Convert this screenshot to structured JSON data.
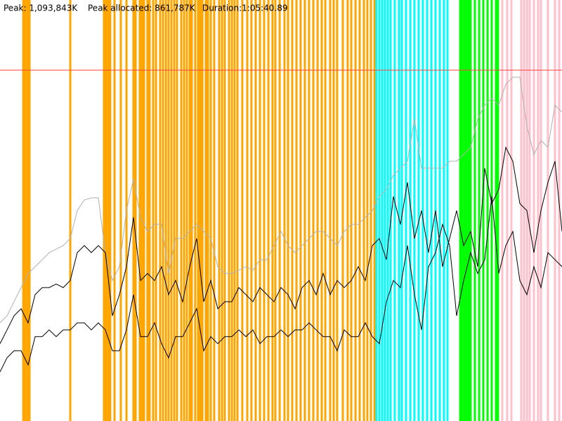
{
  "chart_data": {
    "type": "line",
    "stats": [
      "Peak: 1,093,843K",
      "Peak allocated: 861,787K",
      "Duration:1:05:40.89"
    ],
    "xlim": [
      0,
      3940.89
    ],
    "ylim": [
      0,
      1312612
    ],
    "peak_value": 1093843,
    "peak_color": "#ff4040",
    "x": [
      0,
      49.3,
      98.5,
      147.8,
      197.0,
      246.3,
      295.6,
      344.8,
      394.1,
      443.3,
      492.6,
      541.9,
      591.1,
      640.4,
      689.7,
      738.9,
      788.2,
      837.4,
      886.7,
      936.0,
      985.2,
      1034.5,
      1083.7,
      1133.0,
      1182.3,
      1231.5,
      1280.8,
      1330.1,
      1379.3,
      1428.6,
      1477.8,
      1527.1,
      1576.4,
      1625.6,
      1674.9,
      1724.1,
      1773.4,
      1822.7,
      1871.9,
      1921.2,
      1970.4,
      2019.7,
      2069.0,
      2118.2,
      2167.5,
      2216.8,
      2266.0,
      2315.3,
      2364.5,
      2413.8,
      2463.1,
      2512.3,
      2561.6,
      2610.8,
      2660.1,
      2709.4,
      2758.6,
      2807.9,
      2857.1,
      2906.4,
      2955.7,
      3004.9,
      3054.2,
      3103.5,
      3152.7,
      3202.0,
      3251.2,
      3300.5,
      3349.8,
      3399.0,
      3448.3,
      3497.5,
      3546.8,
      3596.1,
      3645.3,
      3694.6,
      3743.8,
      3793.1,
      3842.4,
      3891.6,
      3940.89
    ],
    "series": [
      {
        "color": "#b0b0b0",
        "values": [
          306000,
          328000,
          372000,
          416000,
          460000,
          481000,
          503000,
          525000,
          536000,
          547000,
          569000,
          656000,
          689000,
          696000,
          696000,
          525000,
          438000,
          481000,
          656000,
          755000,
          635000,
          591000,
          613000,
          613000,
          460000,
          569000,
          569000,
          591000,
          613000,
          591000,
          569000,
          481000,
          460000,
          460000,
          470000,
          481000,
          470000,
          503000,
          503000,
          547000,
          591000,
          547000,
          525000,
          547000,
          569000,
          591000,
          591000,
          569000,
          547000,
          591000,
          613000,
          613000,
          635000,
          656000,
          700000,
          722000,
          766000,
          788000,
          810000,
          941000,
          788000,
          788000,
          788000,
          788000,
          810000,
          810000,
          831000,
          853000,
          941000,
          985000,
          1006000,
          985000,
          1050000,
          1072000,
          1072000,
          919000,
          831000,
          875000,
          853000,
          985000,
          963000
        ]
      },
      {
        "color": "#000000",
        "values": [
          241000,
          284000,
          328000,
          350000,
          306000,
          394000,
          416000,
          416000,
          427000,
          416000,
          438000,
          525000,
          547000,
          525000,
          547000,
          525000,
          328000,
          394000,
          481000,
          635000,
          438000,
          460000,
          438000,
          481000,
          394000,
          438000,
          372000,
          481000,
          569000,
          372000,
          438000,
          350000,
          372000,
          372000,
          416000,
          394000,
          372000,
          416000,
          394000,
          372000,
          416000,
          394000,
          350000,
          416000,
          438000,
          394000,
          460000,
          394000,
          438000,
          416000,
          438000,
          481000,
          438000,
          547000,
          569000,
          503000,
          700000,
          613000,
          744000,
          569000,
          656000,
          525000,
          656000,
          481000,
          569000,
          656000,
          547000,
          591000,
          481000,
          788000,
          678000,
          722000,
          853000,
          810000,
          678000,
          656000,
          525000,
          656000,
          744000,
          810000,
          591000
        ]
      },
      {
        "color": "#000000",
        "values": [
          153000,
          197000,
          219000,
          219000,
          175000,
          263000,
          263000,
          284000,
          263000,
          284000,
          284000,
          306000,
          306000,
          284000,
          306000,
          284000,
          219000,
          219000,
          284000,
          394000,
          263000,
          263000,
          306000,
          241000,
          197000,
          263000,
          263000,
          306000,
          350000,
          219000,
          263000,
          241000,
          263000,
          263000,
          284000,
          263000,
          284000,
          241000,
          263000,
          263000,
          284000,
          263000,
          284000,
          284000,
          306000,
          284000,
          263000,
          263000,
          219000,
          284000,
          263000,
          263000,
          306000,
          263000,
          241000,
          372000,
          438000,
          416000,
          547000,
          394000,
          284000,
          481000,
          525000,
          613000,
          547000,
          328000,
          438000,
          525000,
          460000,
          503000,
          700000,
          460000,
          547000,
          591000,
          438000,
          394000,
          481000,
          416000,
          525000,
          503000,
          481000
        ]
      }
    ],
    "events": [
      {
        "color": "#ffa500",
        "x": [
          163,
          177,
          192,
          207,
          493,
          729,
          744,
          759,
          773,
          803,
          847,
          887,
          936,
          951,
          980,
          995,
          1010,
          1034,
          1049,
          1074,
          1094,
          1123,
          1143,
          1163,
          1182,
          1202,
          1222,
          1241,
          1271,
          1291,
          1310,
          1330,
          1345,
          1369,
          1389,
          1404,
          1419,
          1443,
          1458,
          1478,
          1502,
          1537,
          1557,
          1576,
          1606,
          1626,
          1645,
          1665,
          1699,
          1734,
          1763,
          1793,
          1823,
          1852,
          1882,
          1911,
          1931,
          1961,
          1995,
          2020,
          2049,
          2079,
          2108,
          2138,
          2167,
          2197,
          2227,
          2256,
          2281,
          2315,
          2340,
          2364,
          2404,
          2438,
          2463,
          2493,
          2522,
          2552,
          2576,
          2601,
          2626
        ]
      },
      {
        "color": "#00ffff",
        "x": [
          2640,
          2660,
          2680,
          2699,
          2719,
          2739,
          2768,
          2798,
          2818,
          2847,
          2877,
          2906,
          2936,
          2965,
          2995,
          3025,
          3054,
          3084,
          3113,
          3138
        ]
      },
      {
        "color": "#00ff00",
        "x": [
          3227,
          3241,
          3256,
          3271,
          3286,
          3300,
          3330,
          3360,
          3389,
          3419,
          3448,
          3478,
          3492
        ]
      },
      {
        "color": "#ffc0cb",
        "x": [
          3522,
          3557,
          3586,
          3655,
          3675,
          3695,
          3714,
          3744,
          3773,
          3793,
          3842,
          3892,
          3921
        ]
      }
    ]
  }
}
